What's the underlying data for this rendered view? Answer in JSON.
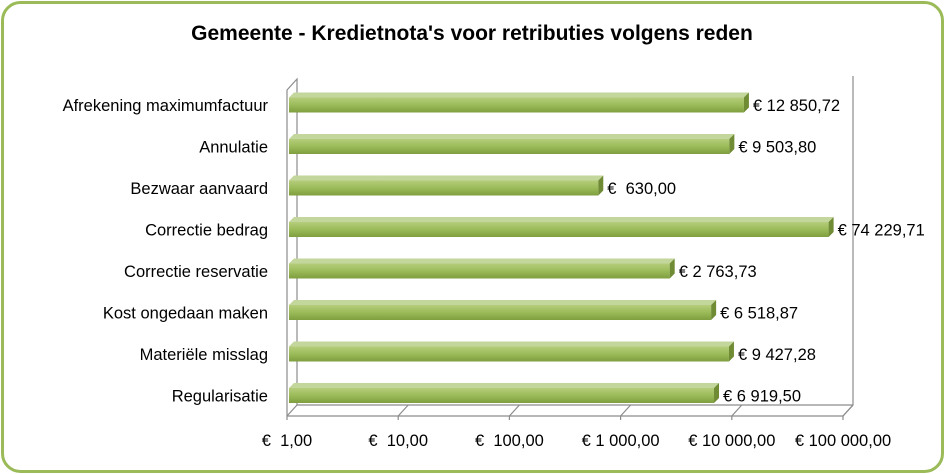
{
  "chart_data": {
    "type": "bar",
    "orientation": "horizontal",
    "style": "3d",
    "title": "Gemeente - Kredietnota's voor retributies volgens reden",
    "categories": [
      "Afrekening maximumfactuur",
      "Annulatie",
      "Bezwaar aanvaard",
      "Correctie bedrag",
      "Correctie reservatie",
      "Kost ongedaan maken",
      "Materiële misslag",
      "Regularisatie"
    ],
    "values": [
      12850.72,
      9503.8,
      630.0,
      74229.71,
      2763.73,
      6518.87,
      9427.28,
      6919.5
    ],
    "value_labels": [
      "€ 12 850,72",
      "€ 9 503,80",
      "€  630,00",
      "€ 74 229,71",
      "€ 2 763,73",
      "€ 6 518,87",
      "€ 9 427,28",
      "€ 6 919,50"
    ],
    "x_ticks": [
      1,
      10,
      100,
      1000,
      10000,
      100000
    ],
    "x_tick_labels": [
      "€  1,00",
      "€  10,00",
      "€  100,00",
      "€ 1 000,00",
      "€ 10 000,00",
      "€ 100 000,00"
    ],
    "xscale": "log",
    "xlim": [
      1,
      100000
    ],
    "xlabel": "",
    "ylabel": "",
    "grid": false,
    "colors": {
      "bar": "#9bbb59",
      "bar_top": "#c3d69b",
      "bar_side": "#6f8b33",
      "border": "#9bbb59"
    }
  }
}
